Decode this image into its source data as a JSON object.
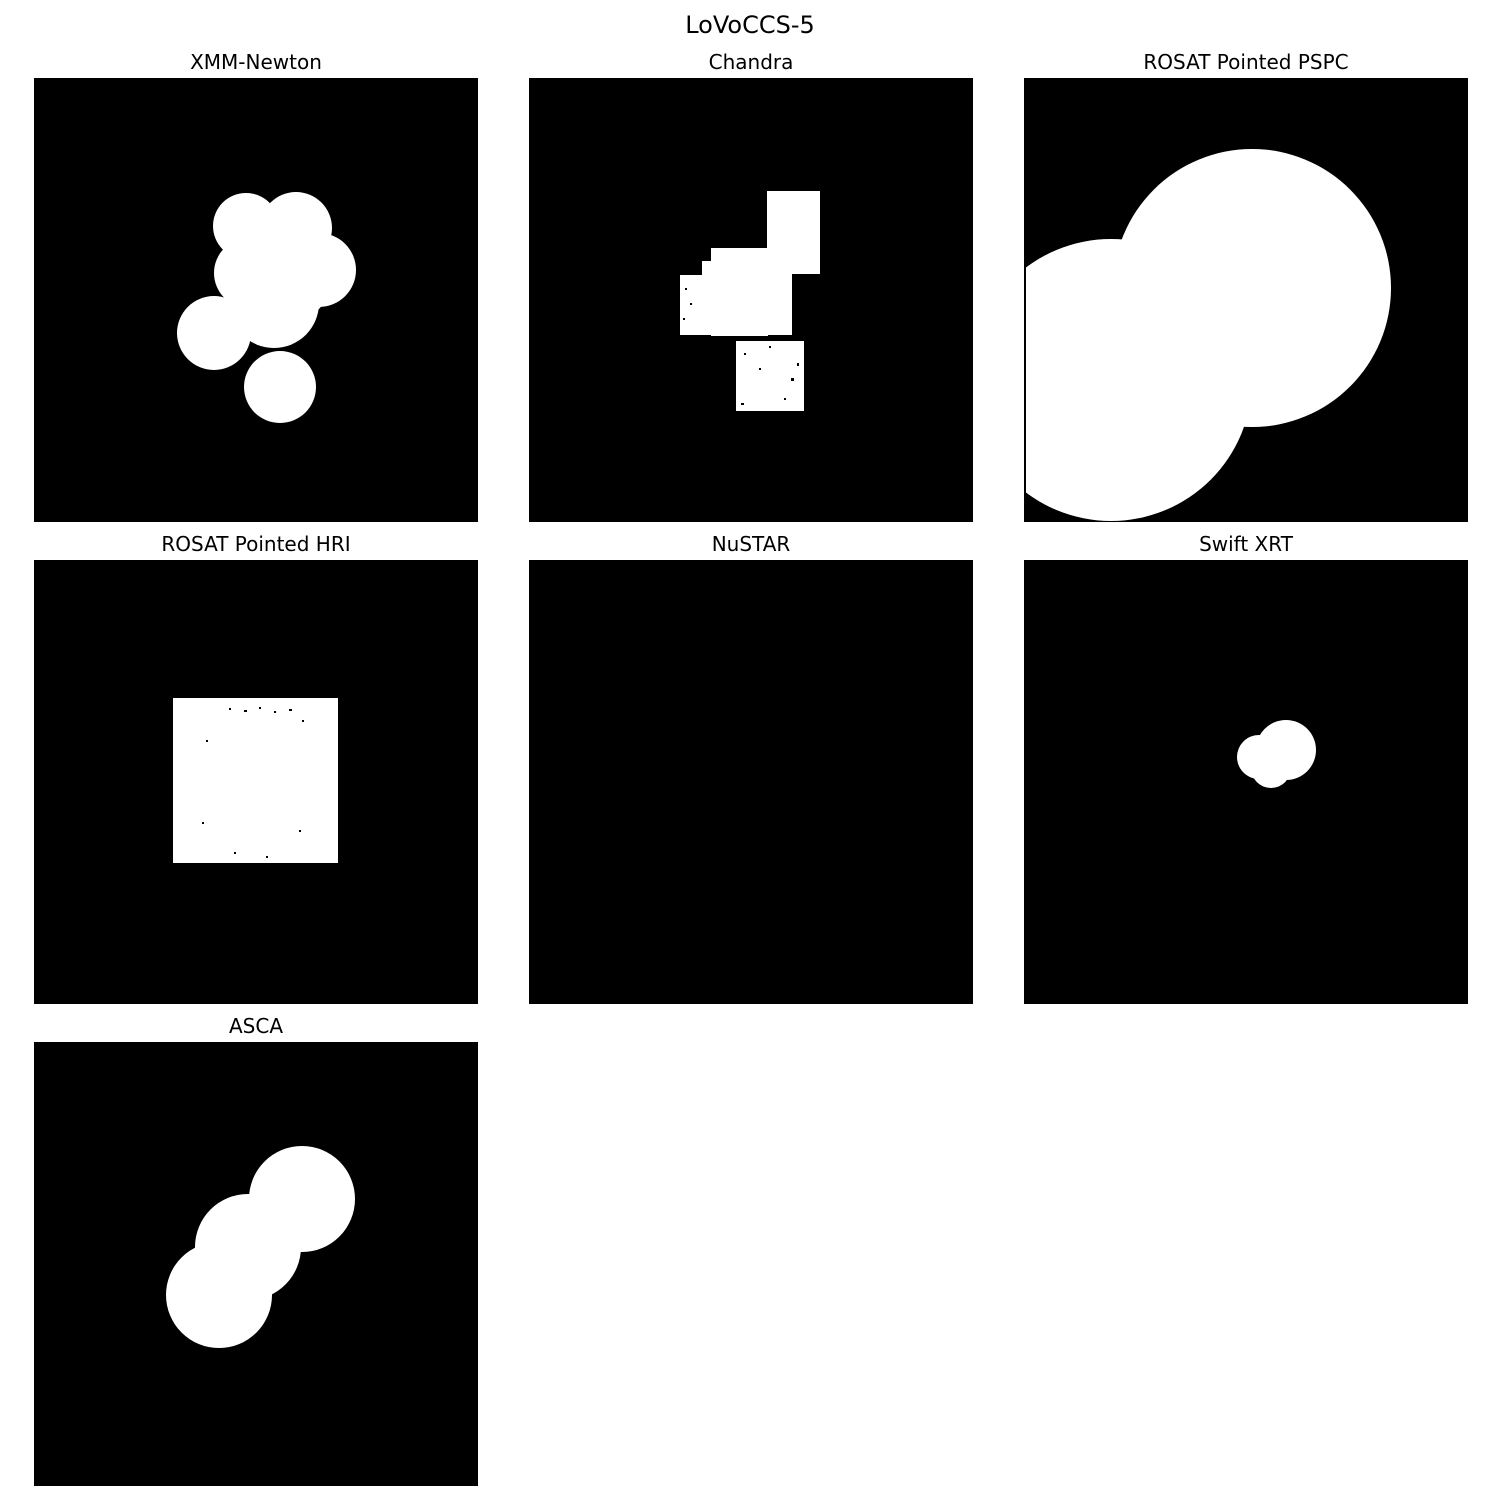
{
  "figure": {
    "title": "LoVoCCS-5"
  },
  "panels": [
    {
      "title": "XMM-Newton"
    },
    {
      "title": "Chandra"
    },
    {
      "title": "ROSAT Pointed PSPC"
    },
    {
      "title": "ROSAT Pointed HRI"
    },
    {
      "title": "NuSTAR"
    },
    {
      "title": "Swift XRT"
    },
    {
      "title": "ASCA"
    }
  ],
  "colors": {
    "mask_on": "#ffffff",
    "mask_off": "#000000"
  }
}
